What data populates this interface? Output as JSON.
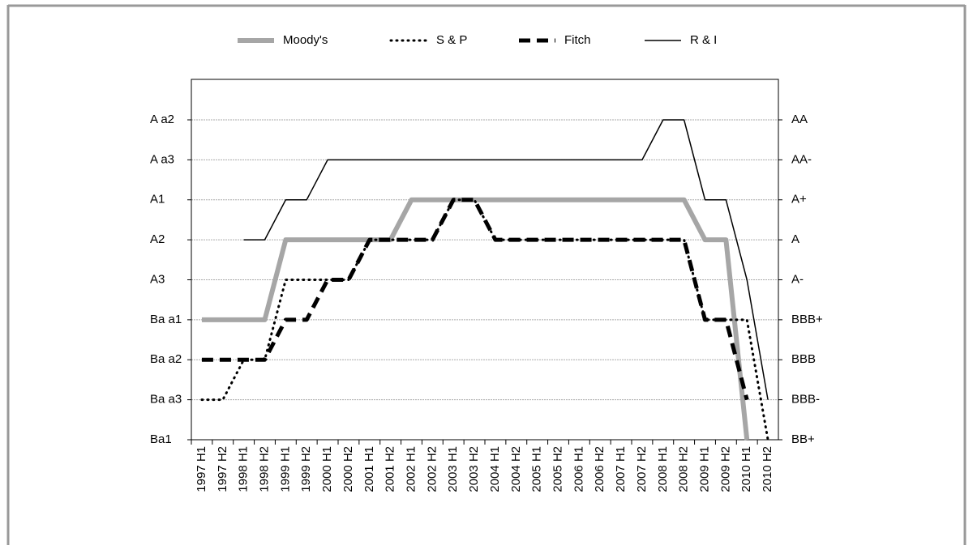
{
  "chart_data": {
    "type": "line",
    "categories": [
      "1997 H1",
      "1997 H2",
      "1998 H1",
      "1998 H2",
      "1999 H1",
      "1999 H2",
      "2000 H1",
      "2000 H2",
      "2001 H1",
      "2001 H2",
      "2002 H1",
      "2002 H2",
      "2003 H1",
      "2003 H2",
      "2004 H1",
      "2004 H2",
      "2005 H1",
      "2005 H2",
      "2006 H1",
      "2006 H2",
      "2007 H1",
      "2007 H2",
      "2008 H1",
      "2008 H2",
      "2009 H1",
      "2009 H2",
      "2010 H1",
      "2010 H2"
    ],
    "series": [
      {
        "name": "Moody's",
        "color": "#a6a6a6",
        "width": 6,
        "dash": "solid",
        "values": [
          3,
          3,
          3,
          3,
          5,
          5,
          5,
          5,
          5,
          5,
          6,
          6,
          6,
          6,
          6,
          6,
          6,
          6,
          6,
          6,
          6,
          6,
          6,
          6,
          5,
          5,
          0,
          null
        ]
      },
      {
        "name": "S & P",
        "color": "#000000",
        "width": 3,
        "dash": "dotted",
        "values": [
          1,
          1,
          2,
          2,
          4,
          4,
          4,
          4,
          5,
          5,
          5,
          5,
          6,
          6,
          5,
          5,
          5,
          5,
          5,
          5,
          5,
          5,
          5,
          5,
          3,
          3,
          3,
          0
        ]
      },
      {
        "name": "Fitch",
        "color": "#000000",
        "width": 5,
        "dash": "dashed",
        "values": [
          2,
          2,
          2,
          2,
          3,
          3,
          4,
          4,
          5,
          5,
          5,
          5,
          6,
          6,
          5,
          5,
          5,
          5,
          5,
          5,
          5,
          5,
          5,
          5,
          3,
          3,
          1,
          null
        ]
      },
      {
        "name": "R & I",
        "color": "#000000",
        "width": 1.5,
        "dash": "solid",
        "values": [
          null,
          null,
          5,
          5,
          6,
          6,
          7,
          7,
          7,
          7,
          7,
          7,
          7,
          7,
          7,
          7,
          7,
          7,
          7,
          7,
          7,
          7,
          8,
          8,
          6,
          6,
          4,
          1
        ]
      }
    ],
    "ylim": [
      0,
      8
    ],
    "yticks": [
      {
        "value": 0,
        "label": "Ba1"
      },
      {
        "value": 1,
        "label": "Ba a3"
      },
      {
        "value": 2,
        "label": "Ba a2"
      },
      {
        "value": 3,
        "label": "Ba a1"
      },
      {
        "value": 4,
        "label": "A3"
      },
      {
        "value": 5,
        "label": "A2"
      },
      {
        "value": 6,
        "label": "A1"
      },
      {
        "value": 7,
        "label": "A a3"
      },
      {
        "value": 8,
        "label": "A a2"
      }
    ],
    "y2lim": [
      0,
      8
    ],
    "y2ticks": [
      {
        "value": 0,
        "label": "BB+"
      },
      {
        "value": 1,
        "label": "BBB-"
      },
      {
        "value": 2,
        "label": "BBB"
      },
      {
        "value": 3,
        "label": "BBB+"
      },
      {
        "value": 4,
        "label": "A-"
      },
      {
        "value": 5,
        "label": "A"
      },
      {
        "value": 6,
        "label": "A+"
      },
      {
        "value": 7,
        "label": "AA-"
      },
      {
        "value": 8,
        "label": "AA"
      }
    ],
    "grid": true,
    "legend": "top"
  }
}
